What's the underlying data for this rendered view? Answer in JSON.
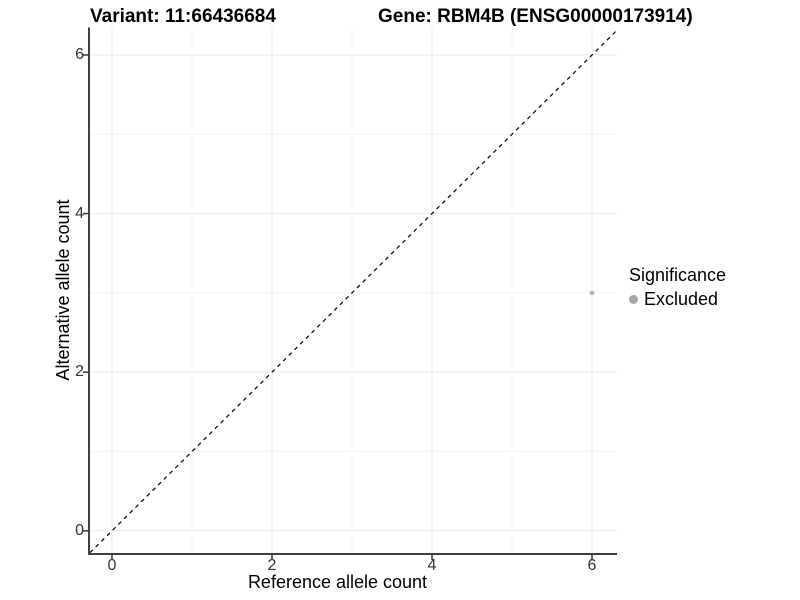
{
  "header": {
    "variant_title": "Variant: 11:66436684",
    "gene_title": "Gene: RBM4B (ENSG00000173914)"
  },
  "axes": {
    "x": {
      "label": "Reference allele count",
      "tick_labels": [
        "0",
        "2",
        "4",
        "6"
      ]
    },
    "y": {
      "label": "Alternative allele count",
      "tick_labels": [
        "0",
        "2",
        "4",
        "6"
      ]
    }
  },
  "legend": {
    "title": "Significance",
    "items": [
      {
        "label": "Excluded",
        "color": "#a6a6a6"
      }
    ]
  },
  "chart_data": {
    "type": "scatter",
    "title": "Variant: 11:66436684",
    "subtitle": "Gene: RBM4B (ENSG00000173914)",
    "xlabel": "Reference allele count",
    "ylabel": "Alternative allele count",
    "xlim": [
      -0.275,
      6.3125
    ],
    "ylim": [
      -0.28,
      6.34
    ],
    "x_major_ticks": [
      0,
      2,
      4,
      6
    ],
    "y_major_ticks": [
      0,
      2,
      4,
      6
    ],
    "x_minor_ticks": [
      1,
      3,
      5
    ],
    "y_minor_ticks": [
      1,
      3,
      5
    ],
    "grid": "major and minor",
    "legend_position": "right",
    "series": [
      {
        "name": "Excluded",
        "color": "#b3b3b3",
        "points": [
          {
            "x": 6,
            "y": 3
          }
        ]
      }
    ],
    "reference_line": {
      "kind": "identity",
      "equation": "y = x",
      "style": "dashed",
      "color": "#000000"
    }
  },
  "style": {
    "major_grid_color": "#e9e9e9",
    "minor_grid_color": "#f4f4f4",
    "axis_line_color": "#404040",
    "tick_mark_color": "#404040",
    "tick_label_color": "#333333",
    "point_color": "#b3b3b3"
  }
}
